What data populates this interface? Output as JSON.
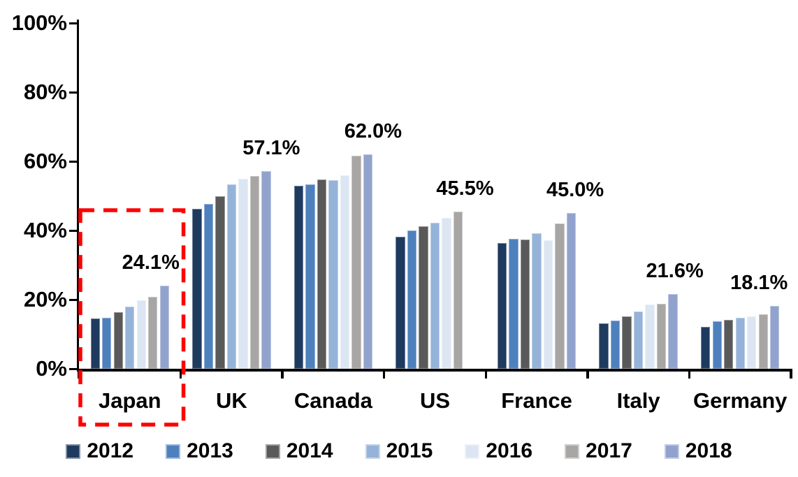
{
  "chart_data": {
    "type": "bar",
    "title": "",
    "categories": [
      "Japan",
      "UK",
      "Canada",
      "US",
      "France",
      "Italy",
      "Germany"
    ],
    "series": [
      {
        "name": "2012",
        "color": "#1E3A5F",
        "values": [
          14.5,
          46.3,
          52.9,
          38.2,
          36.4,
          13.1,
          12.2
        ]
      },
      {
        "name": "2013",
        "color": "#4E80BD",
        "values": [
          14.8,
          47.7,
          53.3,
          40.0,
          37.6,
          13.9,
          13.7
        ]
      },
      {
        "name": "2014",
        "color": "#595959",
        "values": [
          16.4,
          49.9,
          54.8,
          41.2,
          37.4,
          15.2,
          14.2
        ]
      },
      {
        "name": "2015",
        "color": "#95B3D8",
        "values": [
          17.9,
          53.3,
          54.6,
          42.2,
          39.2,
          16.6,
          14.7
        ]
      },
      {
        "name": "2016",
        "color": "#DCE6F2",
        "values": [
          19.8,
          54.9,
          56.0,
          43.6,
          37.2,
          18.6,
          15.2
        ]
      },
      {
        "name": "2017",
        "color": "#A7A6A4",
        "values": [
          20.9,
          55.8,
          61.6,
          45.5,
          42.0,
          18.8,
          15.7
        ]
      },
      {
        "name": "2018",
        "color": "#91A3CD",
        "values": [
          24.1,
          57.1,
          62.0,
          null,
          45.0,
          21.6,
          18.1
        ]
      }
    ],
    "value_labels": [
      "24.1%",
      "57.1%",
      "62.0%",
      "45.5%",
      "45.0%",
      "21.6%",
      "18.1%"
    ],
    "ytick_labels": [
      "0%",
      "20%",
      "40%",
      "60%",
      "80%",
      "100%"
    ],
    "ylim": [
      0,
      100
    ],
    "grid": false,
    "legend_position": "bottom",
    "highlight_box": {
      "category": "Japan",
      "color": "#FF0000",
      "style": "dashed"
    }
  }
}
